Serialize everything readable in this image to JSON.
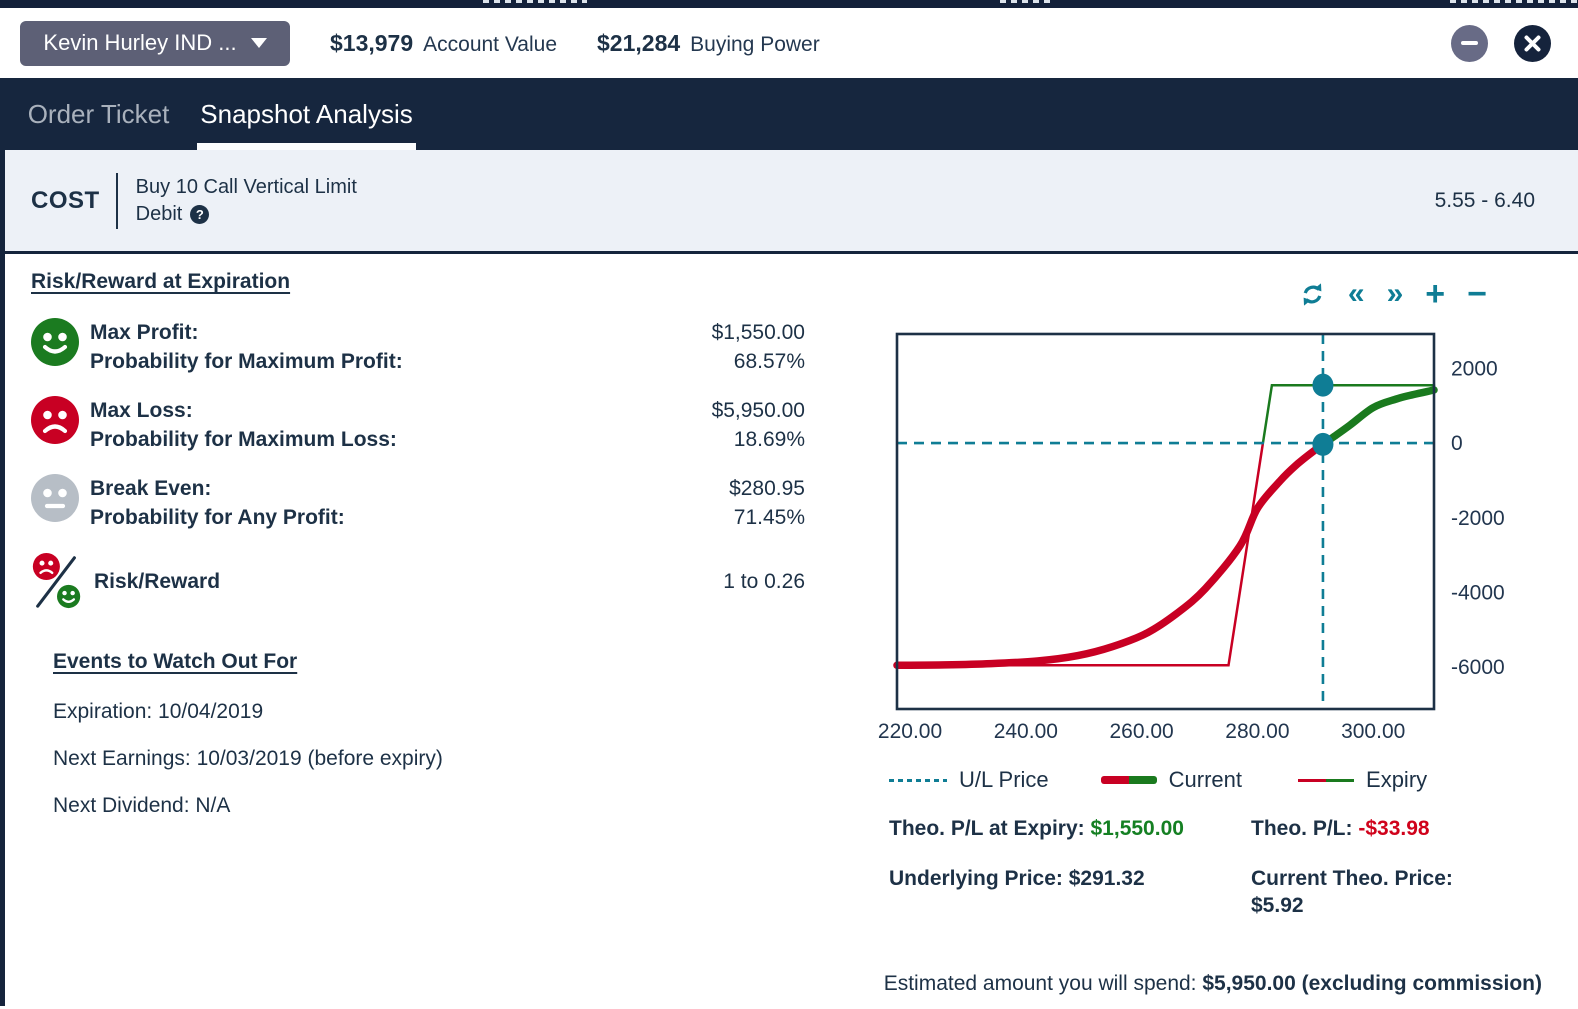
{
  "header": {
    "account_selector": "Kevin Hurley IND ...",
    "account_value": "$13,979",
    "account_value_label": "Account Value",
    "buying_power": "$21,284",
    "buying_power_label": "Buying Power"
  },
  "tabs": [
    {
      "label": "Order Ticket",
      "active": false
    },
    {
      "label": "Snapshot Analysis",
      "active": true
    }
  ],
  "cost": {
    "label": "COST",
    "strategy_line1": "Buy 10 Call Vertical Limit",
    "strategy_line2": "Debit",
    "help_glyph": "?",
    "price_range": "5.55 - 6.40"
  },
  "risk_reward": {
    "heading": "Risk/Reward at Expiration",
    "rows": [
      {
        "icon": "smiley-green-icon",
        "label1": "Max Profit:",
        "value1": "$1,550.00",
        "label2": "Probability for Maximum Profit:",
        "value2": "68.57%"
      },
      {
        "icon": "smiley-red-icon",
        "label1": "Max Loss:",
        "value1": "$5,950.00",
        "label2": "Probability for Maximum Loss:",
        "value2": "18.69%"
      },
      {
        "icon": "smiley-gray-icon",
        "label1": "Break Even:",
        "value1": "$280.95",
        "label2": "Probability for Any Profit:",
        "value2": "71.45%"
      },
      {
        "icon": "risk-reward-ratio-icon",
        "label1": "Risk/Reward",
        "value1": "1 to 0.26"
      }
    ]
  },
  "events": {
    "heading": "Events to Watch Out For",
    "items": [
      "Expiration: 10/04/2019",
      "Next Earnings: 10/03/2019 (before expiry)",
      "Next Dividend: N/A"
    ]
  },
  "chart_toolbar": {
    "back": "«",
    "forward": "»",
    "zoom_in": "+",
    "zoom_out": "−"
  },
  "chart_data": {
    "type": "line",
    "xlim": [
      217.75,
      310.5
    ],
    "ylim": [
      -7120,
      2920
    ],
    "x_ticks": [
      220,
      240,
      260,
      280,
      300
    ],
    "x_tick_labels": [
      "220.00",
      "240.00",
      "260.00",
      "280.00",
      "300.00"
    ],
    "y_ticks": [
      2000,
      0,
      -2000,
      -4000,
      -6000
    ],
    "y_tick_labels": [
      "2000",
      "0",
      "-2000",
      "-4000",
      "-6000"
    ],
    "legend": [
      {
        "label": "U/L Price",
        "swatch": "teal-dashed"
      },
      {
        "label": "Current",
        "swatch": "thick-red-green"
      },
      {
        "label": "Expiry",
        "swatch": "thin-red-green"
      }
    ],
    "series": [
      {
        "name": "Expiry",
        "style": "thin-polyline",
        "points": [
          [
            217.75,
            -5950
          ],
          [
            275,
            -5950
          ],
          [
            282.5,
            1550
          ],
          [
            310.5,
            1550
          ]
        ]
      },
      {
        "name": "Current",
        "style": "thick-smooth",
        "points": [
          [
            217.75,
            -5950
          ],
          [
            226,
            -5940
          ],
          [
            234,
            -5905
          ],
          [
            242,
            -5835
          ],
          [
            249,
            -5690
          ],
          [
            255,
            -5450
          ],
          [
            261,
            -5080
          ],
          [
            266,
            -4570
          ],
          [
            271,
            -3900
          ],
          [
            277,
            -2750
          ],
          [
            280,
            -1750
          ],
          [
            284,
            -1000
          ],
          [
            287,
            -550
          ],
          [
            290,
            -180
          ],
          [
            291.32,
            -34
          ],
          [
            293,
            150
          ],
          [
            296,
            480
          ],
          [
            300,
            950
          ],
          [
            304,
            1180
          ],
          [
            307,
            1300
          ],
          [
            310.5,
            1420
          ]
        ]
      }
    ],
    "crosshair": {
      "x": 291.32,
      "y": 0
    },
    "markers": [
      {
        "x": 291.32,
        "y": 1550
      },
      {
        "x": 291.32,
        "y": -33.98
      }
    ]
  },
  "theo": {
    "expiry_label": "Theo. P/L at Expiry:",
    "expiry_value": "$1,550.00",
    "pl_label": "Theo. P/L:",
    "pl_value": "-$33.98",
    "underlying_label": "Underlying Price:",
    "underlying_value": "$291.32",
    "current_theo_label": "Current Theo. Price:",
    "current_theo_value": "$5.92"
  },
  "footer": {
    "prefix": "Estimated amount you will spend: ",
    "bold": "$5,950.00 (excluding commission)"
  },
  "colors": {
    "accent_teal": "#0f7d95",
    "profit_green": "#1a7a1e",
    "loss_red": "#c80023",
    "navy_text": "#1d3146",
    "bar_navy": "#16263e",
    "neutral_gray": "#b7bec6"
  }
}
